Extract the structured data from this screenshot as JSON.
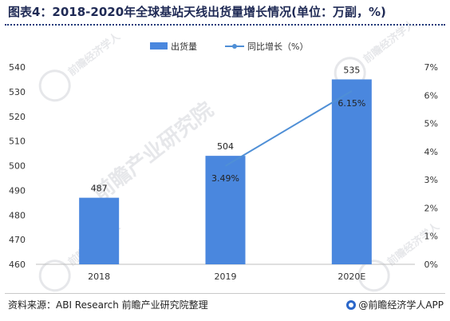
{
  "title": "图表4：2018-2020年全球基站天线出货量增长情况(单位：万副，%)",
  "footer": {
    "source": "资料来源：ABI Research 前瞻产业研究院整理",
    "brand": "@前瞻经济学人APP"
  },
  "watermark": {
    "text_small": "前瞻经济学人",
    "text_large": "前瞻产业研究院"
  },
  "colors": {
    "bar": "#4a87de",
    "line": "#4f8fd6",
    "title": "#1f2a55",
    "axis_text": "#333333"
  },
  "chart_data": {
    "type": "bar",
    "categories": [
      "2018",
      "2019",
      "2020E"
    ],
    "series": [
      {
        "name": "出货量",
        "type": "bar",
        "axis": "left",
        "values": [
          487,
          504,
          535
        ],
        "labels": [
          "487",
          "504",
          "535"
        ]
      },
      {
        "name": "同比增长（%）",
        "type": "line",
        "axis": "right",
        "values": [
          null,
          3.49,
          6.15
        ],
        "labels": [
          "",
          "3.49%",
          "6.15%"
        ]
      }
    ],
    "ylim_left": [
      460,
      540
    ],
    "yticks_left": [
      "460",
      "470",
      "480",
      "490",
      "500",
      "510",
      "520",
      "530",
      "540"
    ],
    "ylim_right": [
      0,
      7
    ],
    "yticks_right": [
      "0%",
      "1%",
      "2%",
      "3%",
      "4%",
      "5%",
      "6%",
      "7%"
    ],
    "legend_position": "top-center",
    "grid": false
  }
}
